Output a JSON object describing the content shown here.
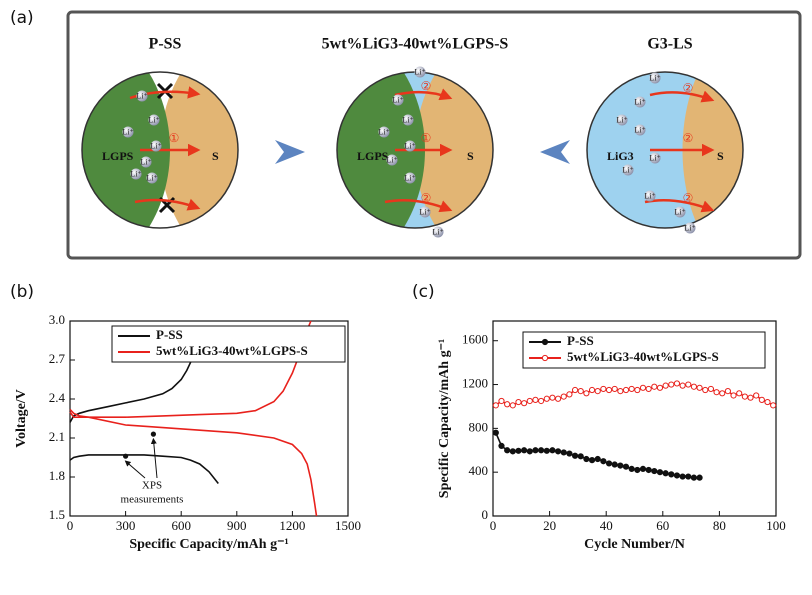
{
  "schematic": {
    "panel_label": "(a)",
    "panels": [
      {
        "title": "P-SS",
        "left_label": "LGPS",
        "right_label": "S"
      },
      {
        "title": "5wt%LiG3-40wt%LGPS-S",
        "left_label": "LGPS",
        "right_label": "S"
      },
      {
        "title": "G3-LS",
        "left_label": "LiG3",
        "right_label": "S"
      }
    ],
    "ion_label": "Li⁺",
    "path_1": "①",
    "path_2": "②"
  },
  "chart_data": [
    {
      "type": "line",
      "panel_label": "(b)",
      "xlabel": "Specific Capacity/mAh g⁻¹",
      "ylabel": "Voltage/V",
      "xlim": [
        0,
        1500
      ],
      "ylim": [
        1.5,
        3.0
      ],
      "xticks": [
        0,
        300,
        600,
        900,
        1200,
        1500
      ],
      "yticks": [
        1.5,
        1.8,
        2.1,
        2.4,
        2.7,
        {
          "value": 3,
          "label": "3.0"
        }
      ],
      "legend": "upper right",
      "series": [
        {
          "name": "P-SS",
          "color": "#111111",
          "x": [
            0,
            20,
            50,
            100,
            200,
            300,
            400,
            500,
            550,
            600,
            630,
            660
          ],
          "values": [
            2.22,
            2.27,
            2.29,
            2.31,
            2.34,
            2.37,
            2.4,
            2.44,
            2.48,
            2.55,
            2.62,
            2.71
          ]
        },
        {
          "color": "#111111",
          "x": [
            0,
            20,
            50,
            100,
            200,
            300,
            400,
            500,
            600,
            650,
            700,
            750,
            800
          ],
          "values": [
            1.93,
            1.95,
            1.96,
            1.97,
            1.97,
            1.97,
            1.97,
            1.96,
            1.95,
            1.93,
            1.9,
            1.84,
            1.75
          ]
        },
        {
          "name": "5wt%LiG3-40wt%LGPS-S",
          "color": "#e8211c",
          "x": [
            0,
            20,
            50,
            100,
            300,
            500,
            700,
            900,
            1000,
            1100,
            1150,
            1200,
            1240,
            1270,
            1300
          ],
          "values": [
            2.3,
            2.26,
            2.26,
            2.26,
            2.26,
            2.27,
            2.28,
            2.29,
            2.31,
            2.38,
            2.46,
            2.6,
            2.75,
            2.9,
            3.0
          ]
        },
        {
          "color": "#e8211c",
          "x": [
            0,
            20,
            50,
            100,
            300,
            500,
            700,
            900,
            1100,
            1200,
            1250,
            1280,
            1300,
            1320,
            1330
          ],
          "values": [
            2.32,
            2.29,
            2.27,
            2.26,
            2.2,
            2.18,
            2.16,
            2.14,
            2.1,
            2.05,
            1.98,
            1.9,
            1.78,
            1.6,
            1.5
          ]
        }
      ],
      "annotation": {
        "lines": [
          "XPS",
          "measurements"
        ],
        "x": [
          300,
          450
        ],
        "y": [
          1.96,
          2.13
        ]
      }
    },
    {
      "type": "line",
      "panel_label": "(c)",
      "xlabel": "Cycle Number/N",
      "ylabel": "Specific Capacity/mAh g⁻¹",
      "xlim": [
        0,
        100
      ],
      "ylim": [
        0,
        1780
      ],
      "xticks": [
        0,
        20,
        40,
        60,
        80,
        100
      ],
      "yticks": [
        0,
        400,
        800,
        1200,
        1600
      ],
      "legend": "upper right",
      "markers": "circle",
      "series": [
        {
          "name": "P-SS",
          "color": "#111111",
          "x": [
            1,
            3,
            5,
            7,
            9,
            11,
            13,
            15,
            17,
            19,
            21,
            23,
            25,
            27,
            29,
            31,
            33,
            35,
            37,
            39,
            41,
            43,
            45,
            47,
            49,
            51,
            53,
            55,
            57,
            59,
            61,
            63,
            65,
            67,
            69,
            71,
            73
          ],
          "values": [
            760,
            640,
            600,
            590,
            595,
            600,
            590,
            600,
            600,
            595,
            600,
            590,
            580,
            570,
            550,
            545,
            520,
            510,
            520,
            500,
            480,
            470,
            460,
            450,
            430,
            420,
            430,
            420,
            410,
            400,
            390,
            380,
            370,
            360,
            360,
            350,
            350
          ]
        },
        {
          "name": "5wt%LiG3-40wt%LGPS-S",
          "color": "#e8211c",
          "x": [
            1,
            3,
            5,
            7,
            9,
            11,
            13,
            15,
            17,
            19,
            21,
            23,
            25,
            27,
            29,
            31,
            33,
            35,
            37,
            39,
            41,
            43,
            45,
            47,
            49,
            51,
            53,
            55,
            57,
            59,
            61,
            63,
            65,
            67,
            69,
            71,
            73,
            75,
            77,
            79,
            81,
            83,
            85,
            87,
            89,
            91,
            93,
            95,
            97,
            99
          ],
          "values": [
            1010,
            1050,
            1020,
            1010,
            1040,
            1030,
            1050,
            1060,
            1050,
            1070,
            1080,
            1070,
            1090,
            1110,
            1150,
            1140,
            1120,
            1150,
            1140,
            1160,
            1150,
            1160,
            1140,
            1150,
            1160,
            1150,
            1170,
            1160,
            1180,
            1170,
            1190,
            1200,
            1210,
            1190,
            1200,
            1180,
            1170,
            1150,
            1160,
            1130,
            1120,
            1140,
            1100,
            1120,
            1090,
            1080,
            1100,
            1060,
            1040,
            1010
          ]
        }
      ]
    }
  ]
}
